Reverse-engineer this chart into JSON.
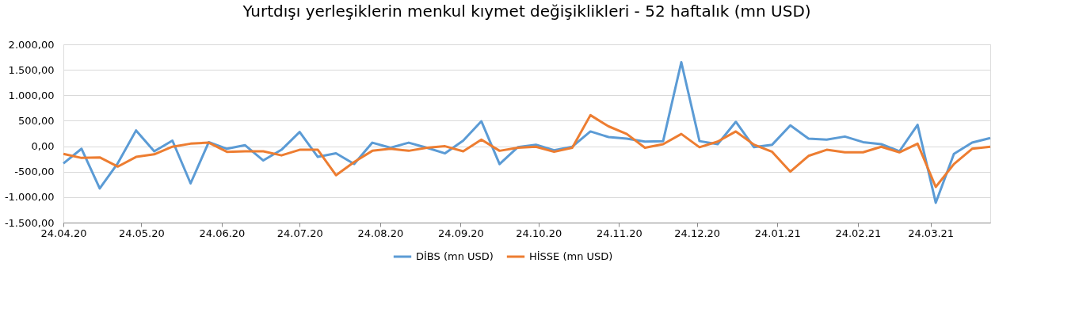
{
  "chart_data": {
    "type": "line",
    "title": "Yurtdışı yerleşiklerin menkul kıymet değişiklikleri - 52 haftalık (mn USD)",
    "x": [
      "2020-04-24",
      "2020-05-01",
      "2020-05-08",
      "2020-05-15",
      "2020-05-22",
      "2020-05-29",
      "2020-06-05",
      "2020-06-12",
      "2020-06-19",
      "2020-06-26",
      "2020-07-03",
      "2020-07-10",
      "2020-07-17",
      "2020-07-24",
      "2020-07-31",
      "2020-08-07",
      "2020-08-14",
      "2020-08-21",
      "2020-08-28",
      "2020-09-04",
      "2020-09-11",
      "2020-09-18",
      "2020-09-25",
      "2020-10-02",
      "2020-10-09",
      "2020-10-16",
      "2020-10-23",
      "2020-10-30",
      "2020-11-06",
      "2020-11-13",
      "2020-11-20",
      "2020-11-27",
      "2020-12-04",
      "2020-12-11",
      "2020-12-18",
      "2020-12-25",
      "2021-01-01",
      "2021-01-08",
      "2021-01-15",
      "2021-01-22",
      "2021-01-29",
      "2021-02-05",
      "2021-02-12",
      "2021-02-19",
      "2021-02-26",
      "2021-03-05",
      "2021-03-12",
      "2021-03-19",
      "2021-03-26",
      "2021-04-02",
      "2021-04-09",
      "2021-04-16"
    ],
    "series": [
      {
        "name": "DİBS (mn USD)",
        "color": "#5b9bd5",
        "values": [
          -340,
          -50,
          -830,
          -330,
          310,
          -100,
          110,
          -730,
          80,
          -50,
          20,
          -280,
          -70,
          280,
          -210,
          -140,
          -350,
          70,
          -30,
          70,
          -30,
          -140,
          110,
          490,
          -350,
          -20,
          30,
          -80,
          -10,
          290,
          180,
          150,
          90,
          100,
          1650,
          100,
          40,
          480,
          -20,
          30,
          410,
          150,
          130,
          190,
          80,
          40,
          -100,
          420,
          -1110,
          -150,
          70,
          160
        ]
      },
      {
        "name": "HİSSE (mn USD)",
        "color": "#ed7d31",
        "values": [
          -150,
          -230,
          -220,
          -400,
          -210,
          -160,
          -10,
          50,
          70,
          -110,
          -100,
          -100,
          -180,
          -70,
          -70,
          -570,
          -310,
          -90,
          -50,
          -90,
          -30,
          0,
          -100,
          130,
          -90,
          -30,
          -10,
          -110,
          -30,
          610,
          390,
          240,
          -30,
          40,
          240,
          -20,
          90,
          290,
          30,
          -110,
          -500,
          -190,
          -70,
          -120,
          -120,
          -10,
          -120,
          50,
          -800,
          -350,
          -50,
          -10
        ]
      }
    ],
    "xlim": [
      "2020-04-24",
      "2021-04-16"
    ],
    "xticks": [
      {
        "value": "2020-04-24",
        "label": "24.04.20"
      },
      {
        "value": "2020-05-24",
        "label": "24.05.20"
      },
      {
        "value": "2020-06-24",
        "label": "24.06.20"
      },
      {
        "value": "2020-07-24",
        "label": "24.07.20"
      },
      {
        "value": "2020-08-24",
        "label": "24.08.20"
      },
      {
        "value": "2020-09-24",
        "label": "24.09.20"
      },
      {
        "value": "2020-10-24",
        "label": "24.10.20"
      },
      {
        "value": "2020-11-24",
        "label": "24.11.20"
      },
      {
        "value": "2020-12-24",
        "label": "24.12.20"
      },
      {
        "value": "2021-01-24",
        "label": "24.01.21"
      },
      {
        "value": "2021-02-24",
        "label": "24.02.21"
      },
      {
        "value": "2021-03-24",
        "label": "24.03.21"
      }
    ],
    "ylim": [
      -1500,
      2000
    ],
    "yticks": [
      {
        "value": -1500,
        "label": "-1.500,00"
      },
      {
        "value": -1000,
        "label": "-1.000,00"
      },
      {
        "value": -500,
        "label": "-500,00"
      },
      {
        "value": 0,
        "label": "0,00"
      },
      {
        "value": 500,
        "label": "500,00"
      },
      {
        "value": 1000,
        "label": "1.000,00"
      },
      {
        "value": 1500,
        "label": "1.500,00"
      },
      {
        "value": 2000,
        "label": "2.000,00"
      }
    ],
    "grid": "y",
    "legend": "bottom",
    "marker": "none",
    "line_style": "solid"
  }
}
